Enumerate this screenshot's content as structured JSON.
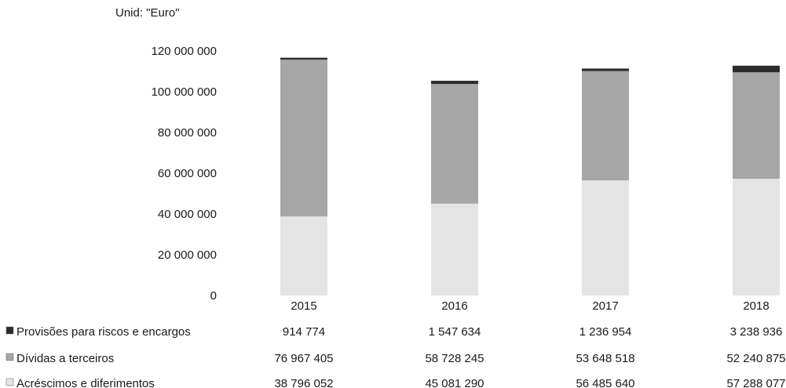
{
  "unit_label": "Unid: \"Euro\"",
  "chart_data": {
    "type": "bar",
    "stacked": true,
    "categories": [
      "2015",
      "2016",
      "2017",
      "2018"
    ],
    "ylim": [
      0,
      120000000
    ],
    "yticks": [
      "0",
      "20 000 000",
      "40 000 000",
      "60 000 000",
      "80 000 000",
      "100 000 000",
      "120 000 000"
    ],
    "grid": false,
    "legend": "data-table below chart",
    "series": [
      {
        "name": "Acréscimos e diferimentos",
        "values": [
          38796052,
          45081290,
          56485640,
          57288077
        ],
        "labels": [
          "38 796 052",
          "45 081 290",
          "56 485 640",
          "57 288 077"
        ],
        "color": "#e4e4e4"
      },
      {
        "name": "Dívidas a terceiros",
        "values": [
          76967405,
          58728245,
          53648518,
          52240875
        ],
        "labels": [
          "76 967 405",
          "58 728 245",
          "53 648 518",
          "52 240 875"
        ],
        "color": "#a6a6a6"
      },
      {
        "name": "Provisões para riscos e encargos",
        "values": [
          914774,
          1547634,
          1236954,
          3238936
        ],
        "labels": [
          "914 774",
          "1 547 634",
          "1 236 954",
          "3 238 936"
        ],
        "color": "#2c2c2c"
      }
    ]
  }
}
